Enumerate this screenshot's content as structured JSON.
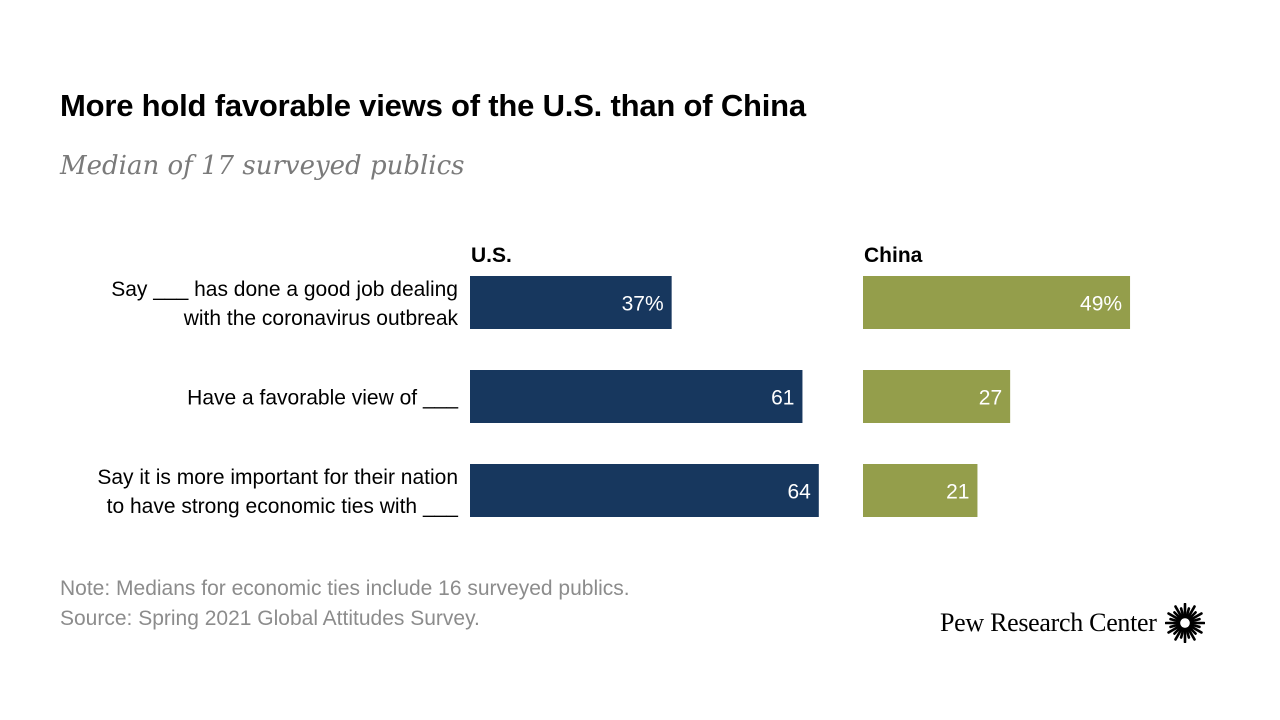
{
  "header": {
    "title": "More hold favorable views of the U.S. than of China",
    "subtitle": "Median of 17 surveyed publics"
  },
  "chart_data": {
    "type": "bar",
    "orientation": "horizontal",
    "title": "More hold favorable views of the U.S. than of China",
    "subtitle": "Median of 17 surveyed publics",
    "categories": [
      [
        "Say ___ has done a good job dealing",
        "with the coronavirus outbreak"
      ],
      [
        "Have a favorable view of ___"
      ],
      [
        "Say it is more important for their nation",
        "to have strong  economic ties with ___"
      ]
    ],
    "series": [
      {
        "name": "U.S.",
        "values": [
          37,
          61,
          64
        ],
        "labels": [
          "37%",
          "61",
          "64"
        ],
        "color": "#17375e"
      },
      {
        "name": "China",
        "values": [
          49,
          27,
          21
        ],
        "labels": [
          "49%",
          "27",
          "21"
        ],
        "color": "#949e4b"
      }
    ],
    "xlim": [
      0,
      100
    ],
    "grid": false,
    "legend": "none"
  },
  "footer": {
    "note": "Note: Medians for economic ties include 16 surveyed publics.",
    "source": "Source: Spring 2021 Global Attitudes Survey.",
    "brand": "Pew Research Center",
    "brand_icon": "pew-sunburst-icon"
  }
}
